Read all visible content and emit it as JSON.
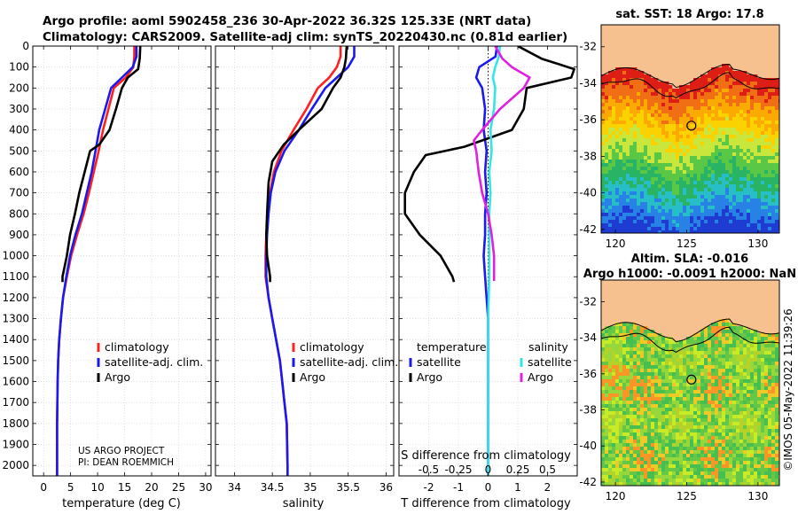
{
  "header": {
    "line1": "Argo profile: aoml 5902458_236 30-Apr-2022 36.32S 125.33E (NRT data)",
    "line2": "Climatology: CARS2009. Satellite-adj clim: synTS_20220430.nc (0.81d earlier)"
  },
  "credits": {
    "project": "US ARGO PROJECT",
    "pi": "PI: DEAN ROEMMICH",
    "stamp": "©IMOS 05-May-2022 11:39:26"
  },
  "colors": {
    "climatology": "#ff2020",
    "satellite": "#1a1aee",
    "argo": "#000000",
    "satellite_S": "#33e5e5",
    "argo_S": "#e020e0",
    "land": "#f7c08f"
  },
  "chart_data": [
    {
      "type": "line",
      "id": "temperature",
      "xlabel": "temperature (deg C)",
      "ylabel": "",
      "xlim": [
        -2,
        31
      ],
      "ylim": [
        2050,
        0
      ],
      "xticks": [
        0,
        5,
        10,
        15,
        20,
        25,
        30
      ],
      "xtick_labels": [
        "0",
        "5",
        "10",
        "15",
        "20",
        "25",
        "30"
      ],
      "yticks": [
        0,
        100,
        200,
        300,
        400,
        500,
        600,
        700,
        800,
        900,
        1000,
        1100,
        1200,
        1300,
        1400,
        1500,
        1600,
        1700,
        1800,
        1900,
        2000
      ],
      "ytick_labels": [
        "0",
        "100",
        "200",
        "300",
        "400",
        "500",
        "600",
        "700",
        "800",
        "900",
        "1000",
        "1100",
        "1200",
        "1300",
        "1400",
        "1500",
        "1600",
        "1700",
        "1800",
        "1900",
        "2000"
      ],
      "legend": [
        "climatology",
        "satellite-adj. clim.",
        "Argo"
      ],
      "series": [
        {
          "name": "climatology",
          "color": "#ff2020",
          "x": [
            16.8,
            16.8,
            16.6,
            15.2,
            13.0,
            12.0,
            11.0,
            10.2,
            9.3,
            8.4,
            7.4,
            6.2,
            5.1,
            4.3,
            3.6,
            3.2,
            2.9,
            2.7,
            2.6,
            2.5,
            2.5,
            2.5
          ],
          "y": [
            0,
            50,
            100,
            150,
            200,
            300,
            400,
            500,
            600,
            700,
            800,
            900,
            1000,
            1100,
            1200,
            1300,
            1400,
            1500,
            1600,
            1800,
            2000,
            2050
          ]
        },
        {
          "name": "satellite-adj. clim.",
          "color": "#1a1aee",
          "x": [
            17.2,
            17.2,
            16.5,
            14.5,
            12.5,
            11.4,
            10.3,
            9.6,
            8.9,
            8.0,
            7.1,
            5.9,
            4.9,
            4.2,
            3.6,
            3.2,
            2.9,
            2.7,
            2.6,
            2.5,
            2.5,
            2.5
          ],
          "y": [
            0,
            50,
            100,
            150,
            200,
            300,
            400,
            500,
            600,
            700,
            800,
            900,
            1000,
            1100,
            1200,
            1300,
            1400,
            1500,
            1600,
            1800,
            2000,
            2050
          ]
        },
        {
          "name": "Argo",
          "color": "#000000",
          "x": [
            17.9,
            17.8,
            17.5,
            15.6,
            14.5,
            13.4,
            12.2,
            10.3,
            8.6,
            7.6,
            6.6,
            5.8,
            4.9,
            4.3,
            3.5,
            3.5
          ],
          "y": [
            0,
            60,
            110,
            150,
            200,
            300,
            400,
            470,
            500,
            600,
            700,
            800,
            900,
            1000,
            1100,
            1125
          ]
        }
      ]
    },
    {
      "type": "line",
      "id": "salinity",
      "xlabel": "salinity",
      "xlim": [
        33.75,
        36.1
      ],
      "ylim": [
        2050,
        0
      ],
      "xticks": [
        34,
        34.5,
        35,
        35.5,
        36
      ],
      "xtick_labels": [
        "34",
        "34.5",
        "35",
        "35.5",
        "36"
      ],
      "legend": [
        "climatology",
        "satellite-adj. clim.",
        "Argo"
      ],
      "series": [
        {
          "name": "climatology",
          "color": "#ff2020",
          "x": [
            35.4,
            35.4,
            35.35,
            35.25,
            35.1,
            34.95,
            34.78,
            34.62,
            34.52,
            34.47,
            34.44,
            34.42,
            34.41,
            34.41,
            34.45,
            34.5,
            34.55,
            34.6,
            34.63,
            34.66,
            34.69,
            34.7,
            34.7
          ],
          "y": [
            0,
            50,
            100,
            150,
            200,
            300,
            400,
            500,
            600,
            700,
            800,
            900,
            1000,
            1100,
            1200,
            1300,
            1400,
            1500,
            1600,
            1700,
            1800,
            2000,
            2050
          ]
        },
        {
          "name": "satellite-adj. clim.",
          "color": "#1a1aee",
          "x": [
            35.58,
            35.58,
            35.5,
            35.35,
            35.2,
            35.02,
            34.85,
            34.66,
            34.54,
            34.48,
            34.45,
            34.43,
            34.42,
            34.42,
            34.45,
            34.5,
            34.55,
            34.6,
            34.63,
            34.66,
            34.69,
            34.7,
            34.7
          ],
          "y": [
            0,
            50,
            100,
            150,
            200,
            300,
            400,
            500,
            600,
            700,
            800,
            900,
            1000,
            1100,
            1200,
            1300,
            1400,
            1500,
            1600,
            1700,
            1800,
            2000,
            2050
          ]
        },
        {
          "name": "Argo",
          "color": "#000000",
          "x": [
            35.48,
            35.47,
            35.45,
            35.4,
            35.3,
            35.15,
            34.85,
            34.65,
            34.5,
            34.45,
            34.43,
            34.42,
            34.43,
            34.47,
            34.47
          ],
          "y": [
            0,
            60,
            100,
            150,
            200,
            300,
            400,
            470,
            550,
            650,
            800,
            900,
            1000,
            1100,
            1125
          ]
        }
      ]
    },
    {
      "type": "line",
      "id": "difference",
      "xlabel": "T difference from climatology",
      "xlabel_top": "S difference from climatology",
      "xlim": [
        -3,
        3
      ],
      "ylim": [
        2050,
        0
      ],
      "xticks": [
        -2,
        -1,
        0,
        1,
        2
      ],
      "xtick_labels": [
        "-2",
        "-1",
        "0",
        "1",
        "2"
      ],
      "top_ticks": [
        -0.5,
        -0.25,
        0,
        0.25,
        0.5
      ],
      "top_tick_labels": [
        "-0.5",
        "-0.25",
        "0",
        "0.25",
        "0.5"
      ],
      "s_scale": 4,
      "legend_T_title": "temperature",
      "legend_S_title": "salinity",
      "legend_T": [
        "satellite",
        "Argo"
      ],
      "legend_S": [
        "satellite",
        "Argo"
      ],
      "series": [
        {
          "name": "T satellite",
          "color": "#1a1aee",
          "x": [
            0.3,
            0.25,
            -0.3,
            -0.4,
            -0.2,
            -0.1,
            -0.15,
            -0.05,
            -0.1,
            -0.05,
            -0.1,
            -0.1,
            -0.15,
            -0.1,
            -0.05,
            0,
            0,
            0,
            0,
            0
          ],
          "y": [
            0,
            50,
            100,
            150,
            200,
            300,
            400,
            500,
            600,
            700,
            800,
            900,
            1000,
            1100,
            1200,
            1300,
            1500,
            1700,
            1900,
            2050
          ]
        },
        {
          "name": "T Argo",
          "color": "#000000",
          "x": [
            1.0,
            1.8,
            2.9,
            2.8,
            1.3,
            1.2,
            0.8,
            -0.8,
            -2.1,
            -2.5,
            -2.8,
            -2.8,
            -2.3,
            -1.6,
            -1.2,
            -1.15
          ],
          "y": [
            0,
            60,
            110,
            150,
            200,
            300,
            400,
            480,
            520,
            600,
            700,
            800,
            900,
            1000,
            1100,
            1125
          ]
        },
        {
          "name": "S satellite",
          "color": "#33e5e5",
          "x": [
            0.1,
            0.09,
            0.06,
            0.04,
            0.06,
            0.05,
            0.02,
            0.03,
            0.01,
            0.02,
            0.01,
            0.01,
            0.01,
            0.01,
            0,
            0,
            0
          ],
          "y": [
            0,
            50,
            100,
            150,
            200,
            300,
            400,
            500,
            600,
            700,
            800,
            900,
            1000,
            1100,
            1300,
            1700,
            2050
          ]
        },
        {
          "name": "S Argo",
          "color": "#e020e0",
          "x": [
            0.06,
            0.12,
            0.2,
            0.35,
            0.3,
            0.1,
            -0.05,
            -0.12,
            -0.1,
            -0.08,
            -0.05,
            0.0,
            0.03,
            0.05,
            0.05
          ],
          "y": [
            0,
            60,
            100,
            150,
            200,
            300,
            400,
            450,
            500,
            600,
            700,
            800,
            900,
            1000,
            1120
          ]
        }
      ]
    },
    {
      "type": "heatmap",
      "id": "sst-map",
      "title": "sat. SST: 18 Argo: 17.8",
      "xlim": [
        119,
        131.5
      ],
      "ylim": [
        -42.2,
        -30.8
      ],
      "xticks": [
        120,
        125,
        130
      ],
      "xtick_labels": [
        "120",
        "125",
        "130"
      ],
      "yticks": [
        -32,
        -34,
        -36,
        -38,
        -40,
        -42
      ],
      "ytick_labels": [
        "-32",
        "-34",
        "-36",
        "-38",
        "-40",
        "-42"
      ],
      "marker": {
        "lon": 125.33,
        "lat": -36.32
      }
    },
    {
      "type": "heatmap",
      "id": "sla-map",
      "title": "Altim. SLA: -0.016",
      "subtitle": "Argo h1000: -0.0091 h2000: NaN",
      "xlim": [
        119,
        131.5
      ],
      "ylim": [
        -42.2,
        -30.8
      ],
      "xticks": [
        120,
        125,
        130
      ],
      "xtick_labels": [
        "120",
        "125",
        "130"
      ],
      "yticks": [
        -32,
        -34,
        -36,
        -38,
        -40,
        -42
      ],
      "ytick_labels": [
        "-32",
        "-34",
        "-36",
        "-38",
        "-40",
        "-42"
      ],
      "marker": {
        "lon": 125.33,
        "lat": -36.32
      }
    }
  ]
}
